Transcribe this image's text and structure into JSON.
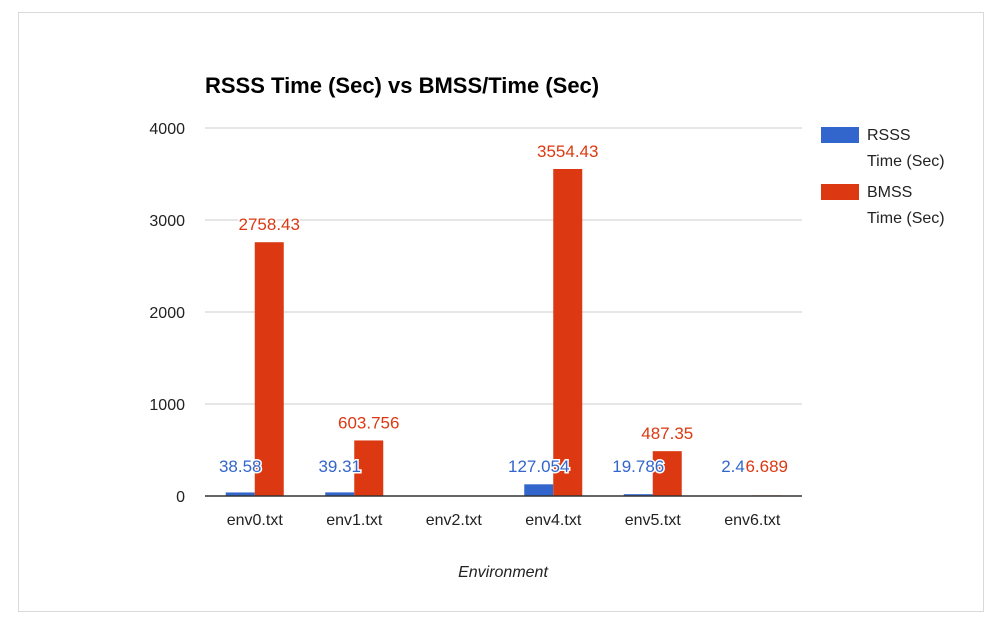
{
  "chart_data": {
    "type": "bar",
    "title": "RSSS Time (Sec) vs BMSS/Time (Sec)",
    "xlabel": "Environment",
    "ylabel": "",
    "categories": [
      "env0.txt",
      "env1.txt",
      "env2.txt",
      "env4.txt",
      "env5.txt",
      "env6.txt"
    ],
    "series": [
      {
        "name": "RSSS Time (Sec)",
        "legend_lines": [
          "RSSS",
          "Time (Sec)"
        ],
        "color": "#3366cc",
        "values": [
          38.58,
          39.31,
          null,
          127.054,
          19.786,
          2.46
        ],
        "labels": [
          "38.58",
          "39.31",
          "",
          "127.054",
          "19.786",
          "2.46"
        ]
      },
      {
        "name": "BMSS Time (Sec)",
        "legend_lines": [
          "BMSS",
          "Time (Sec)"
        ],
        "color": "#dc3912",
        "values": [
          2758.43,
          603.756,
          null,
          3554.43,
          487.35,
          6.689
        ],
        "labels": [
          "2758.43",
          "603.756",
          "",
          "3554.43",
          "487.35",
          "6.689"
        ]
      }
    ],
    "ylim": [
      0,
      4000
    ],
    "yticks": [
      0,
      1000,
      2000,
      3000,
      4000
    ],
    "ytick_labels": [
      "0",
      "1000",
      "2000",
      "3000",
      "4000"
    ],
    "grid": true,
    "legend_position": "right"
  }
}
